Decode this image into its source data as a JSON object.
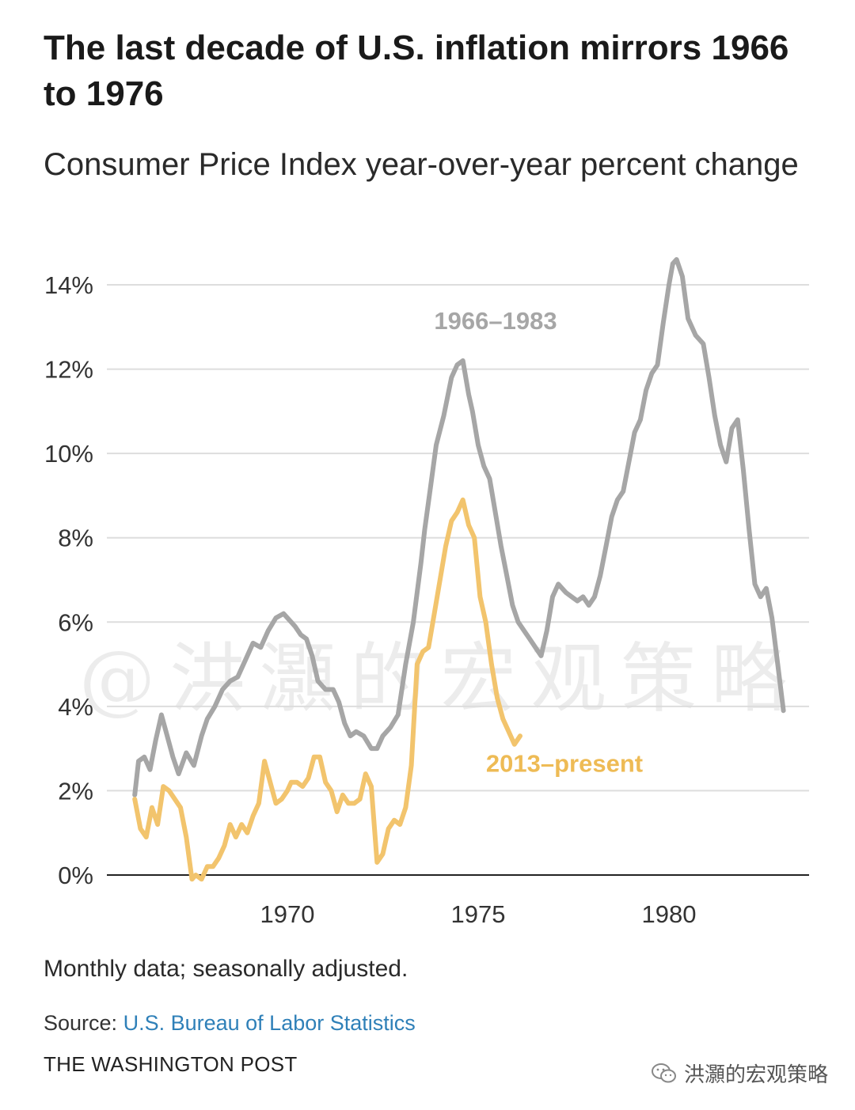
{
  "title": "The last decade of U.S. inflation mirrors 1966 to 1976",
  "subtitle": "Consumer Price Index year-over-year percent change",
  "note": "Monthly data; seasonally adjusted.",
  "source_label": "Source:",
  "source_name": "U.S. Bureau of Labor Statistics",
  "publisher": "THE WASHINGTON POST",
  "watermark": "@洪灝的宏观策略",
  "corner_mark": "洪灝的宏观策略",
  "colors": {
    "series_1966": "#a6a6a6",
    "series_2013": "#f2c46d",
    "link": "#2f80b8"
  },
  "chart_data": {
    "type": "line",
    "title": "The last decade of U.S. inflation mirrors 1966 to 1976",
    "subtitle": "Consumer Price Index year-over-year percent change",
    "xlabel": "",
    "ylabel": "",
    "xlim": [
      1966.0,
      1984.0
    ],
    "ylim": [
      0,
      14
    ],
    "x_ticks": [
      1970,
      1975,
      1980
    ],
    "x_tick_labels": [
      "1970",
      "1975",
      "1980"
    ],
    "y_ticks": [
      0,
      2,
      4,
      6,
      8,
      10,
      12,
      14
    ],
    "y_tick_labels": [
      "0%",
      "2%",
      "4%",
      "6%",
      "8%",
      "10%",
      "12%",
      "14%"
    ],
    "grid": true,
    "legend": "direct labels",
    "series": [
      {
        "name": "1966–1983",
        "color": "#a6a6a6",
        "x": [
          1966.0,
          1966.1,
          1966.25,
          1966.4,
          1966.55,
          1966.7,
          1966.85,
          1967.0,
          1967.15,
          1967.35,
          1967.55,
          1967.75,
          1967.9,
          1968.1,
          1968.3,
          1968.5,
          1968.7,
          1968.9,
          1969.1,
          1969.3,
          1969.5,
          1969.7,
          1969.9,
          1970.1,
          1970.2,
          1970.35,
          1970.5,
          1970.65,
          1970.8,
          1971.0,
          1971.2,
          1971.35,
          1971.5,
          1971.65,
          1971.8,
          1972.0,
          1972.2,
          1972.35,
          1972.5,
          1972.7,
          1972.9,
          1973.1,
          1973.3,
          1973.5,
          1973.6,
          1973.75,
          1973.9,
          1974.1,
          1974.3,
          1974.45,
          1974.6,
          1974.75,
          1974.85,
          1975.0,
          1975.15,
          1975.3,
          1975.45,
          1975.6,
          1975.75,
          1975.9,
          1976.05,
          1976.2,
          1976.35,
          1976.5,
          1976.65,
          1976.8,
          1976.95,
          1977.1,
          1977.3,
          1977.45,
          1977.6,
          1977.75,
          1977.9,
          1978.05,
          1978.2,
          1978.35,
          1978.5,
          1978.65,
          1978.8,
          1978.95,
          1979.1,
          1979.25,
          1979.4,
          1979.55,
          1979.7,
          1979.85,
          1980.0,
          1980.1,
          1980.2,
          1980.35,
          1980.5,
          1980.7,
          1980.9,
          1981.05,
          1981.2,
          1981.35,
          1981.5,
          1981.65,
          1981.8,
          1981.95,
          1982.1,
          1982.25,
          1982.4,
          1982.55,
          1982.7,
          1982.85,
          1983.0
        ],
        "values": [
          1.9,
          2.7,
          2.8,
          2.5,
          3.2,
          3.8,
          3.3,
          2.8,
          2.4,
          2.9,
          2.6,
          3.3,
          3.7,
          4.0,
          4.4,
          4.6,
          4.7,
          5.1,
          5.5,
          5.4,
          5.8,
          6.1,
          6.2,
          6.0,
          5.9,
          5.7,
          5.6,
          5.2,
          4.6,
          4.4,
          4.4,
          4.1,
          3.6,
          3.3,
          3.4,
          3.3,
          3.0,
          3.0,
          3.3,
          3.5,
          3.8,
          5.0,
          6.0,
          7.4,
          8.2,
          9.2,
          10.2,
          10.9,
          11.8,
          12.1,
          12.2,
          11.4,
          11.0,
          10.2,
          9.7,
          9.4,
          8.6,
          7.8,
          7.1,
          6.4,
          6.0,
          5.8,
          5.6,
          5.4,
          5.2,
          5.8,
          6.6,
          6.9,
          6.7,
          6.6,
          6.5,
          6.6,
          6.4,
          6.6,
          7.1,
          7.8,
          8.5,
          8.9,
          9.1,
          9.8,
          10.5,
          10.8,
          11.5,
          11.9,
          12.1,
          13.1,
          14.0,
          14.5,
          14.6,
          14.2,
          13.2,
          12.8,
          12.6,
          11.8,
          10.9,
          10.2,
          9.8,
          10.6,
          10.8,
          9.6,
          8.2,
          6.9,
          6.6,
          6.8,
          6.1,
          5.0,
          3.9
        ]
      },
      {
        "name": "2013–present",
        "color": "#f2c46d",
        "x": [
          1966.0,
          1966.15,
          1966.3,
          1966.45,
          1966.6,
          1966.75,
          1966.9,
          1967.05,
          1967.2,
          1967.35,
          1967.5,
          1967.6,
          1967.75,
          1967.9,
          1968.05,
          1968.2,
          1968.35,
          1968.5,
          1968.65,
          1968.8,
          1968.95,
          1969.1,
          1969.25,
          1969.4,
          1969.55,
          1969.7,
          1969.85,
          1970.0,
          1970.1,
          1970.25,
          1970.4,
          1970.55,
          1970.7,
          1970.85,
          1971.0,
          1971.15,
          1971.3,
          1971.45,
          1971.6,
          1971.75,
          1971.9,
          1972.05,
          1972.2,
          1972.35,
          1972.5,
          1972.65,
          1972.8,
          1972.95,
          1973.1,
          1973.25,
          1973.4,
          1973.55,
          1973.7,
          1973.85,
          1974.0,
          1974.15,
          1974.3,
          1974.45,
          1974.6,
          1974.75,
          1974.9,
          1975.05,
          1975.2,
          1975.35,
          1975.5,
          1975.65,
          1975.8,
          1975.95,
          1976.1
        ],
        "values": [
          1.8,
          1.1,
          0.9,
          1.6,
          1.2,
          2.1,
          2.0,
          1.8,
          1.6,
          0.9,
          -0.1,
          0.0,
          -0.1,
          0.2,
          0.2,
          0.4,
          0.7,
          1.2,
          0.9,
          1.2,
          1.0,
          1.4,
          1.7,
          2.7,
          2.2,
          1.7,
          1.8,
          2.0,
          2.2,
          2.2,
          2.1,
          2.3,
          2.8,
          2.8,
          2.2,
          2.0,
          1.5,
          1.9,
          1.7,
          1.7,
          1.8,
          2.4,
          2.1,
          0.3,
          0.5,
          1.1,
          1.3,
          1.2,
          1.6,
          2.6,
          5.0,
          5.3,
          5.4,
          6.2,
          7.0,
          7.8,
          8.4,
          8.6,
          8.9,
          8.3,
          8.0,
          6.6,
          6.0,
          5.0,
          4.2,
          3.7,
          3.4,
          3.1,
          3.3
        ]
      }
    ],
    "annotations": [
      {
        "text": "1966–1983",
        "series": "1966–1983"
      },
      {
        "text": "2013–present",
        "series": "2013–present"
      }
    ]
  }
}
